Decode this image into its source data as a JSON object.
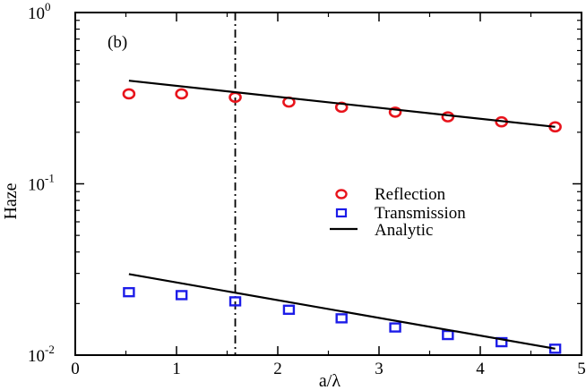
{
  "chart_data": {
    "type": "scatter",
    "panel_label": "(b)",
    "xlabel": "a/λ",
    "ylabel": "Haze",
    "xlim": [
      0,
      5
    ],
    "ylim": [
      0.01,
      1
    ],
    "yscale": "log",
    "x_ticks": [
      0,
      1,
      2,
      3,
      4,
      5
    ],
    "x_tick_labels": [
      "0",
      "1",
      "2",
      "3",
      "4",
      "5"
    ],
    "y_ticks": [
      {
        "value": 1,
        "base": "10",
        "exp": "0"
      },
      {
        "value": 0.1,
        "base": "10",
        "exp": "-1"
      },
      {
        "value": 0.01,
        "base": "10",
        "exp": "-2"
      }
    ],
    "vline_x": 1.58,
    "legend_position": "center-right",
    "series": [
      {
        "name": "Reflection",
        "marker": "circle",
        "color": "#e8141c",
        "x": [
          0.53,
          1.05,
          1.58,
          2.11,
          2.63,
          3.16,
          3.68,
          4.21,
          4.74
        ],
        "y": [
          0.335,
          0.335,
          0.32,
          0.3,
          0.28,
          0.262,
          0.246,
          0.23,
          0.215
        ]
      },
      {
        "name": "Transmission",
        "marker": "square",
        "color": "#1c1ce8",
        "x": [
          0.53,
          1.05,
          1.58,
          2.11,
          2.63,
          3.16,
          3.68,
          4.21,
          4.74
        ],
        "y": [
          0.0233,
          0.0224,
          0.0206,
          0.0184,
          0.0164,
          0.0145,
          0.0131,
          0.0119,
          0.0109
        ]
      },
      {
        "name": "Analytic",
        "marker": "line",
        "color": "#000000",
        "segments": [
          {
            "x": [
              0.53,
              4.74
            ],
            "y": [
              0.4,
              0.215
            ]
          },
          {
            "x": [
              0.53,
              4.74
            ],
            "y": [
              0.0297,
              0.0109
            ]
          }
        ]
      }
    ]
  }
}
